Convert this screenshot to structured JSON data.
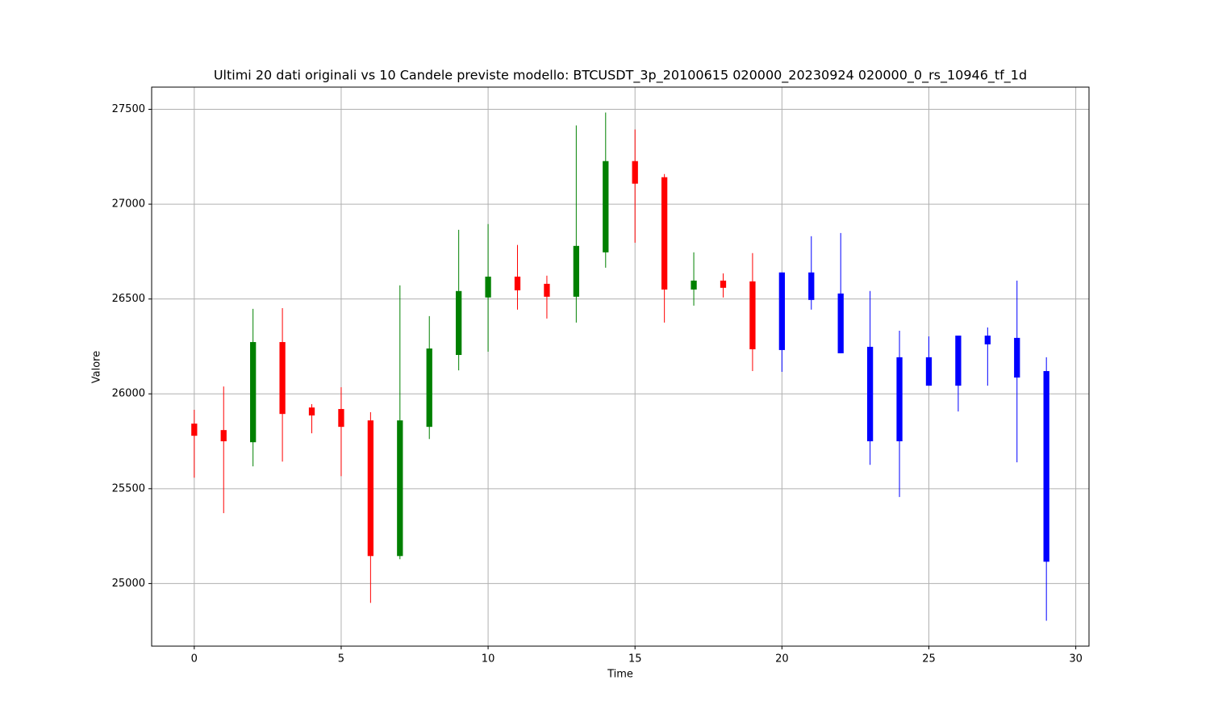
{
  "chart_data": {
    "type": "candlestick",
    "title": "Ultimi 20 dati originali vs 10 Candele previste modello: BTCUSDT_3p_20100615 020000_20230924 020000_0_rs_10946_tf_1d",
    "xlabel": "Time",
    "ylabel": "Valore",
    "x": [
      0,
      1,
      2,
      3,
      4,
      5,
      6,
      7,
      8,
      9,
      10,
      11,
      12,
      13,
      14,
      15,
      16,
      17,
      18,
      19,
      20,
      21,
      22,
      23,
      24,
      25,
      26,
      27,
      28,
      29
    ],
    "open": [
      25843,
      25809,
      25745,
      26273,
      25928,
      25920,
      25860,
      25145,
      25826,
      26205,
      26508,
      26618,
      26580,
      26512,
      26746,
      27227,
      27142,
      26550,
      26597,
      26593,
      26231,
      26495,
      26529,
      26248,
      26193,
      26043,
      26043,
      26307,
      26295,
      26120
    ],
    "high": [
      25916,
      26039,
      26448,
      26452,
      25946,
      26035,
      25903,
      26572,
      26410,
      26865,
      26895,
      26785,
      26623,
      27415,
      27483,
      27394,
      27159,
      26746,
      26635,
      26742,
      26640,
      26831,
      26848,
      26542,
      26333,
      26303,
      26307,
      26350,
      26597,
      26193
    ],
    "low": [
      25558,
      25371,
      25618,
      25643,
      25792,
      25566,
      24898,
      25128,
      25762,
      26124,
      26222,
      26444,
      26397,
      26376,
      26665,
      26797,
      26376,
      26465,
      26508,
      26120,
      26116,
      26444,
      26214,
      25626,
      25456,
      26043,
      25907,
      26043,
      25639,
      24804
    ],
    "close": [
      25779,
      25750,
      26273,
      25894,
      25886,
      25826,
      25145,
      25860,
      26239,
      26542,
      26618,
      26546,
      26512,
      26780,
      27227,
      27108,
      26550,
      26597,
      26559,
      26235,
      26640,
      26640,
      26214,
      25750,
      25750,
      26193,
      26307,
      26261,
      26086,
      25115
    ],
    "colors": [
      "red",
      "red",
      "green",
      "red",
      "red",
      "red",
      "red",
      "green",
      "green",
      "green",
      "green",
      "red",
      "red",
      "green",
      "green",
      "red",
      "red",
      "green",
      "red",
      "red",
      "blue",
      "blue",
      "blue",
      "blue",
      "blue",
      "blue",
      "blue",
      "blue",
      "blue",
      "blue"
    ],
    "xlim": [
      -1.45,
      30.45
    ],
    "xticks": [
      0,
      5,
      10,
      15,
      20,
      25,
      30
    ],
    "ylim": [
      24670,
      27617
    ],
    "yticks": [
      25000,
      25500,
      26000,
      26500,
      27000,
      27500
    ],
    "grid": true
  }
}
